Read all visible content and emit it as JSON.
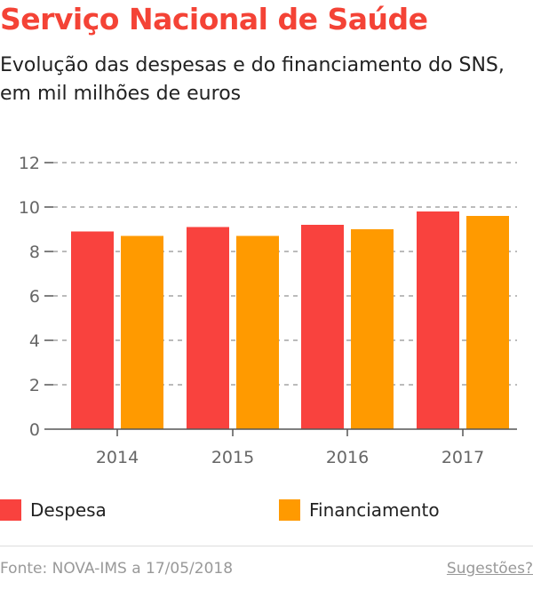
{
  "title": "Serviço Nacional de Saúde",
  "subtitle": "Evolução das despesas e do financiamento do SNS, em mil milhões de euros",
  "chart_data": {
    "type": "bar",
    "categories": [
      "2014",
      "2015",
      "2016",
      "2017"
    ],
    "series": [
      {
        "name": "Despesa",
        "color": "#f9423e",
        "values": [
          8.9,
          9.1,
          9.2,
          9.8
        ]
      },
      {
        "name": "Financiamento",
        "color": "#ff9a00",
        "values": [
          8.7,
          8.7,
          9.0,
          9.6
        ]
      }
    ],
    "ylim": [
      0,
      12
    ],
    "yticks": [
      0,
      2,
      4,
      6,
      8,
      10,
      12
    ],
    "grid": true,
    "legend": "bottom"
  },
  "footer": {
    "source": "Fonte: NOVA-IMS a 17/05/2018",
    "suggestions": "Sugestões?"
  }
}
